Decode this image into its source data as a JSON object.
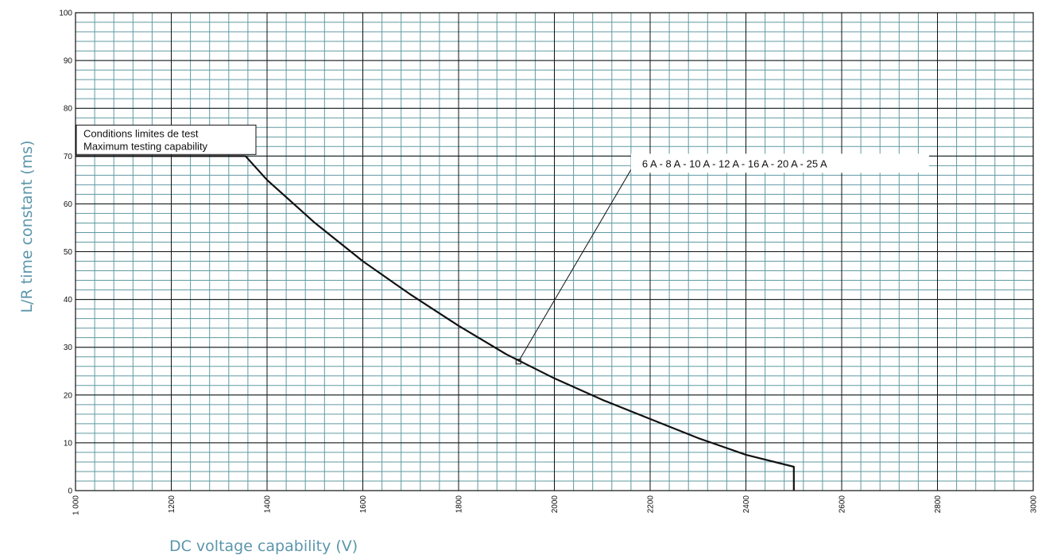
{
  "colors": {
    "minor_grid": "#5f9aa2",
    "major_grid": "#111111",
    "curve": "#111111",
    "axis_title": "#5b96ab"
  },
  "chart_data": {
    "type": "line",
    "xlabel": "DC voltage capability (V)",
    "ylabel": "L/R time constant (ms)",
    "xlim": [
      1000,
      3000
    ],
    "ylim": [
      0,
      100
    ],
    "x_ticks": [
      1000,
      1200,
      1400,
      1600,
      1800,
      2000,
      2200,
      2400,
      2600,
      2800,
      3000
    ],
    "x_tick_labels": [
      "1 000",
      "1200",
      "1400",
      "1600",
      "1800",
      "2000",
      "2200",
      "2400",
      "2600",
      "2800",
      "3000"
    ],
    "y_ticks": [
      0,
      10,
      20,
      30,
      40,
      50,
      60,
      70,
      80,
      90,
      100
    ],
    "y_tick_labels": [
      "0",
      "10",
      "20",
      "30",
      "40",
      "50",
      "60",
      "70",
      "80",
      "90",
      "100"
    ],
    "minor_x_step": 40,
    "minor_y_step": 2,
    "grid": true,
    "series": [
      {
        "values": [
          [
            1000,
            70
          ],
          [
            1355,
            70
          ],
          [
            1400,
            65
          ],
          [
            1500,
            56
          ],
          [
            1600,
            48
          ],
          [
            1700,
            41
          ],
          [
            1800,
            34.5
          ],
          [
            1900,
            28.5
          ],
          [
            2000,
            23.5
          ],
          [
            2100,
            19
          ],
          [
            2200,
            15
          ],
          [
            2300,
            11
          ],
          [
            2400,
            7.5
          ],
          [
            2500,
            5
          ],
          [
            2500,
            0
          ]
        ]
      }
    ],
    "annotations": [
      {
        "lines": [
          "Conditions limites de test",
          "Maximum testing capability"
        ],
        "x": 1000,
        "y": 71
      },
      {
        "text": "6 A - 8 A - 10 A - 12 A - 16 A - 20 A - 25 A",
        "x": 2160,
        "y": 68.5,
        "pointer": [
          1925,
          27
        ]
      }
    ]
  }
}
